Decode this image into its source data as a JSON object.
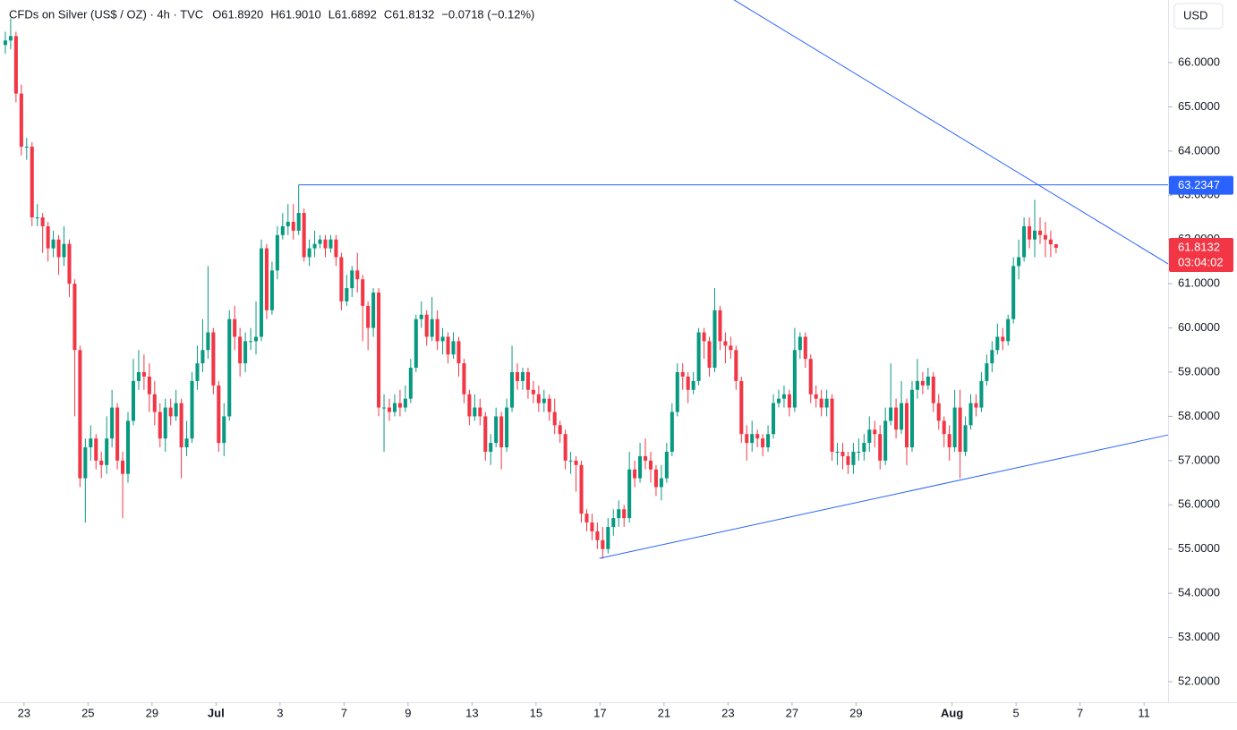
{
  "chart_data": {
    "type": "candlestick",
    "title": "CFDs on Silver (US$ / OZ) · 4h · TVC",
    "ohlc_legend": [
      "O61.8920",
      "H61.9010",
      "L61.6892",
      "C61.8132",
      "−0.0718 (−0.12%)"
    ],
    "currency": "USD",
    "up_color": "#089981",
    "down_color": "#f23645",
    "line_color": "#2962ff",
    "grid": false,
    "open": [
      66.4,
      66.5,
      66.6,
      65.3,
      64.1,
      64.1,
      62.5,
      62.5,
      62.3,
      61.8,
      62.0,
      61.6,
      61.9,
      61.0,
      59.5,
      56.6,
      57.3,
      57.5,
      57.0,
      56.9,
      57.5,
      58.2,
      57.0,
      56.7,
      57.9,
      58.8,
      59.0,
      58.9,
      58.5,
      58.1,
      57.5,
      58.2,
      58.0,
      58.3,
      57.3,
      57.5,
      58.8,
      59.2,
      59.5,
      59.9,
      58.7,
      57.4,
      58.0,
      60.2,
      59.8,
      59.2,
      59.7,
      59.7,
      59.8,
      61.8,
      60.4,
      61.3,
      62.1,
      62.3,
      62.4,
      62.2,
      62.6,
      61.6,
      61.8,
      61.9,
      62.0,
      61.8,
      62.0,
      61.6,
      60.6,
      60.9,
      61.3,
      61.1,
      60.5,
      60.0,
      60.8,
      58.2,
      58.2,
      58.1,
      58.3,
      58.2,
      58.4,
      59.1,
      60.2,
      60.3,
      59.8,
      60.2,
      59.7,
      59.8,
      59.4,
      59.7,
      59.2,
      58.5,
      58.0,
      58.2,
      58.0,
      57.2,
      57.4,
      58.0,
      57.3,
      58.2,
      59.0,
      58.8,
      59.0,
      58.6,
      58.5,
      58.3,
      58.4,
      58.1,
      57.8,
      57.6,
      57.0,
      57.0,
      56.9,
      55.8,
      55.6,
      55.4,
      55.2,
      55.0,
      55.5,
      55.7,
      55.9,
      55.7,
      56.8,
      56.6,
      57.1,
      57.0,
      56.8,
      56.4,
      56.6,
      57.2,
      58.1,
      59.0,
      58.9,
      58.6,
      58.8,
      59.9,
      59.7,
      59.1,
      60.4,
      59.7,
      59.6,
      59.5,
      58.8,
      57.6,
      57.4,
      57.6,
      57.5,
      57.3,
      57.6,
      58.3,
      58.4,
      58.5,
      58.2,
      59.5,
      59.8,
      59.3,
      58.5,
      58.4,
      58.2,
      58.4,
      57.2,
      57.2,
      57.1,
      56.9,
      57.2,
      57.2,
      57.4,
      57.7,
      57.6,
      57.0,
      57.9,
      58.2,
      57.7,
      58.3,
      57.3,
      58.6,
      58.8,
      58.7,
      58.9,
      58.3,
      57.9,
      57.6,
      57.3,
      58.2,
      57.2,
      57.8,
      58.3,
      58.2,
      58.8,
      59.2,
      59.5,
      59.8,
      59.7,
      60.2,
      61.4,
      61.6,
      62.3,
      62.0,
      62.2,
      62.1,
      62.0,
      61.892
    ],
    "high": [
      66.7,
      67.0,
      66.7,
      65.5,
      64.3,
      64.2,
      62.8,
      62.6,
      62.4,
      62.2,
      62.1,
      62.3,
      62.0,
      61.1,
      59.6,
      57.5,
      57.8,
      57.6,
      57.2,
      58.0,
      58.6,
      58.3,
      57.2,
      58.1,
      59.3,
      59.5,
      59.4,
      59.2,
      58.8,
      58.3,
      58.4,
      58.4,
      58.6,
      58.4,
      57.9,
      59.0,
      59.6,
      60.2,
      61.4,
      60.0,
      58.8,
      58.3,
      60.4,
      60.5,
      60.0,
      59.9,
      60.0,
      60.6,
      62.0,
      61.9,
      61.5,
      62.3,
      62.6,
      62.8,
      62.8,
      63.2347,
      62.7,
      62.0,
      62.2,
      62.1,
      62.1,
      62.1,
      62.1,
      61.7,
      61.2,
      61.4,
      61.7,
      61.2,
      60.6,
      60.9,
      60.9,
      58.5,
      58.4,
      58.5,
      58.6,
      58.7,
      59.3,
      60.3,
      60.6,
      60.4,
      60.7,
      60.4,
      60.0,
      59.9,
      59.9,
      59.8,
      59.3,
      58.6,
      58.5,
      58.4,
      58.1,
      57.6,
      58.2,
      58.1,
      58.4,
      59.6,
      59.2,
      59.1,
      59.1,
      58.8,
      58.7,
      58.6,
      58.5,
      58.4,
      57.9,
      57.7,
      57.2,
      57.1,
      57.0,
      55.9,
      55.8,
      55.6,
      55.5,
      55.7,
      55.9,
      56.1,
      56.0,
      57.2,
      57.0,
      57.4,
      57.5,
      57.2,
      56.9,
      56.9,
      57.4,
      58.3,
      59.2,
      59.2,
      59.0,
      59.0,
      60.0,
      60.0,
      59.8,
      60.9,
      60.5,
      59.9,
      59.8,
      59.6,
      58.9,
      57.8,
      57.9,
      57.7,
      57.6,
      57.8,
      58.5,
      58.6,
      58.7,
      58.6,
      60.0,
      59.9,
      59.9,
      59.4,
      58.7,
      58.6,
      58.6,
      58.5,
      57.4,
      57.4,
      57.2,
      57.4,
      57.5,
      57.6,
      58.0,
      57.9,
      57.8,
      58.2,
      59.2,
      58.4,
      58.8,
      58.4,
      58.8,
      59.3,
      59.0,
      59.1,
      59.0,
      58.5,
      58.0,
      57.8,
      58.6,
      58.6,
      58.0,
      58.5,
      58.5,
      59.0,
      59.4,
      59.7,
      60.1,
      60.0,
      60.3,
      61.6,
      62.0,
      62.5,
      62.5,
      62.9,
      62.5,
      62.4,
      62.2,
      61.901
    ],
    "low": [
      66.2,
      66.3,
      65.1,
      63.9,
      63.8,
      62.3,
      62.3,
      61.7,
      61.5,
      61.6,
      61.2,
      61.4,
      60.7,
      58.0,
      56.4,
      55.6,
      57.0,
      56.8,
      56.6,
      56.7,
      57.3,
      56.8,
      55.7,
      56.5,
      57.8,
      58.6,
      58.6,
      58.1,
      57.8,
      57.3,
      57.2,
      57.8,
      57.9,
      56.6,
      57.1,
      57.4,
      58.6,
      59.0,
      59.3,
      58.5,
      57.2,
      57.1,
      57.9,
      59.5,
      58.9,
      59.0,
      59.5,
      59.4,
      59.7,
      60.2,
      60.3,
      61.1,
      62.0,
      62.1,
      62.0,
      62.1,
      61.5,
      61.4,
      61.6,
      61.8,
      61.6,
      61.7,
      61.4,
      60.4,
      60.5,
      60.7,
      60.8,
      59.7,
      59.5,
      59.8,
      58.0,
      57.2,
      57.9,
      58.0,
      58.0,
      58.1,
      58.3,
      59.0,
      60.0,
      59.6,
      59.7,
      59.5,
      59.4,
      59.2,
      59.3,
      58.9,
      58.3,
      57.8,
      57.9,
      57.8,
      57.0,
      56.9,
      57.3,
      56.8,
      57.2,
      58.1,
      58.6,
      58.6,
      58.4,
      58.3,
      58.1,
      58.1,
      57.9,
      57.6,
      57.4,
      56.8,
      56.7,
      56.3,
      55.6,
      55.4,
      55.2,
      55.0,
      54.78,
      54.9,
      55.3,
      55.5,
      55.5,
      55.6,
      56.4,
      56.5,
      56.8,
      56.5,
      56.2,
      56.1,
      56.5,
      57.1,
      58.0,
      58.6,
      58.3,
      58.5,
      58.7,
      59.3,
      58.9,
      59.0,
      59.5,
      59.2,
      59.3,
      58.6,
      57.4,
      57.0,
      57.2,
      57.3,
      57.1,
      57.2,
      57.5,
      58.2,
      58.2,
      58.0,
      58.1,
      59.3,
      59.1,
      58.3,
      58.2,
      58.0,
      58.0,
      57.0,
      56.9,
      56.8,
      56.7,
      56.7,
      57.0,
      57.0,
      57.2,
      57.3,
      56.8,
      56.9,
      57.8,
      57.5,
      57.6,
      56.9,
      57.2,
      58.4,
      58.5,
      58.6,
      58.1,
      57.7,
      57.3,
      57.0,
      57.2,
      56.6,
      57.1,
      57.7,
      58.0,
      58.1,
      58.7,
      59.0,
      59.4,
      59.5,
      59.6,
      60.1,
      61.1,
      61.5,
      61.8,
      61.6,
      61.9,
      61.6,
      61.6,
      61.6892
    ],
    "close": [
      66.5,
      66.6,
      65.3,
      64.1,
      64.1,
      62.5,
      62.5,
      62.3,
      61.8,
      62.0,
      61.6,
      61.9,
      61.0,
      59.5,
      56.6,
      57.3,
      57.5,
      57.0,
      56.9,
      57.5,
      58.2,
      57.0,
      56.7,
      57.9,
      58.8,
      59.0,
      58.9,
      58.5,
      58.1,
      57.5,
      58.2,
      58.0,
      58.3,
      57.3,
      57.5,
      58.8,
      59.2,
      59.5,
      59.9,
      58.7,
      57.4,
      58.0,
      60.2,
      59.8,
      59.2,
      59.7,
      59.7,
      59.8,
      61.8,
      60.4,
      61.3,
      62.1,
      62.3,
      62.4,
      62.2,
      62.6,
      61.6,
      61.8,
      61.9,
      62.0,
      61.8,
      62.0,
      61.6,
      60.6,
      60.9,
      61.3,
      61.1,
      60.5,
      60.0,
      60.8,
      58.2,
      58.2,
      58.1,
      58.3,
      58.2,
      58.4,
      59.1,
      60.2,
      60.3,
      59.8,
      60.2,
      59.7,
      59.8,
      59.4,
      59.7,
      59.2,
      58.5,
      58.0,
      58.2,
      58.0,
      57.2,
      57.4,
      58.0,
      57.3,
      58.2,
      59.0,
      58.8,
      59.0,
      58.6,
      58.5,
      58.3,
      58.4,
      58.1,
      57.8,
      57.6,
      57.0,
      57.0,
      56.9,
      55.8,
      55.6,
      55.4,
      55.2,
      55.0,
      55.5,
      55.7,
      55.9,
      55.7,
      56.8,
      56.6,
      57.1,
      57.0,
      56.8,
      56.4,
      56.6,
      57.2,
      58.1,
      59.0,
      58.9,
      58.6,
      58.8,
      59.9,
      59.7,
      59.1,
      60.4,
      59.7,
      59.6,
      59.5,
      58.8,
      57.6,
      57.4,
      57.6,
      57.5,
      57.3,
      57.6,
      58.3,
      58.4,
      58.5,
      58.2,
      59.5,
      59.8,
      59.3,
      58.5,
      58.4,
      58.2,
      58.4,
      57.2,
      57.2,
      57.1,
      56.9,
      57.2,
      57.2,
      57.4,
      57.7,
      57.6,
      57.0,
      57.9,
      58.2,
      57.7,
      58.3,
      57.3,
      58.6,
      58.8,
      58.7,
      58.9,
      58.3,
      57.9,
      57.6,
      57.3,
      58.2,
      57.2,
      57.8,
      58.3,
      58.2,
      58.8,
      59.2,
      59.5,
      59.8,
      59.7,
      60.2,
      61.4,
      61.6,
      62.3,
      62.0,
      62.2,
      62.1,
      62.0,
      61.89,
      61.8132
    ],
    "xlim": [
      -1,
      218
    ],
    "xticks": [
      {
        "value": 3.5,
        "label": "23"
      },
      {
        "value": 15.5,
        "label": "25"
      },
      {
        "value": 27.5,
        "label": "29"
      },
      {
        "value": 39.5,
        "label": "Jul"
      },
      {
        "value": 51.5,
        "label": "3"
      },
      {
        "value": 63.5,
        "label": "7"
      },
      {
        "value": 75.5,
        "label": "9"
      },
      {
        "value": 87.5,
        "label": "13"
      },
      {
        "value": 99.5,
        "label": "15"
      },
      {
        "value": 111.5,
        "label": "17"
      },
      {
        "value": 123.5,
        "label": "21"
      },
      {
        "value": 135.5,
        "label": "23"
      },
      {
        "value": 147.5,
        "label": "27"
      },
      {
        "value": 159.5,
        "label": "29"
      },
      {
        "value": 177.5,
        "label": "Aug"
      },
      {
        "value": 189.5,
        "label": "5"
      },
      {
        "value": 201.5,
        "label": "7"
      },
      {
        "value": 213.5,
        "label": "11"
      }
    ],
    "ylim": [
      51.535,
      67.416
    ],
    "yticks": [
      {
        "value": 52,
        "label": "52.0000"
      },
      {
        "value": 53,
        "label": "53.0000"
      },
      {
        "value": 54,
        "label": "54.0000"
      },
      {
        "value": 55,
        "label": "55.0000"
      },
      {
        "value": 56,
        "label": "56.0000"
      },
      {
        "value": 57,
        "label": "57.0000"
      },
      {
        "value": 58,
        "label": "58.0000"
      },
      {
        "value": 59,
        "label": "59.0000"
      },
      {
        "value": 60,
        "label": "60.0000"
      },
      {
        "value": 61,
        "label": "61.0000"
      },
      {
        "value": 62,
        "label": "62.0000"
      },
      {
        "value": 63,
        "label": "63.0000"
      },
      {
        "value": 64,
        "label": "64.0000"
      },
      {
        "value": 65,
        "label": "65.0000"
      },
      {
        "value": 66,
        "label": "66.0000"
      }
    ],
    "level_line": {
      "value": 63.2347,
      "label": "63.2347",
      "x": [
        55,
        218
      ]
    },
    "trendlines": [
      {
        "x": [
          136.6,
          218
        ],
        "y": [
          67.42,
          61.45
        ]
      },
      {
        "x": [
          111.4,
          218
        ],
        "y": [
          54.79,
          57.58
        ]
      }
    ],
    "last_price": {
      "value": 61.8132,
      "label": "61.8132",
      "countdown": "03:04:02"
    }
  }
}
